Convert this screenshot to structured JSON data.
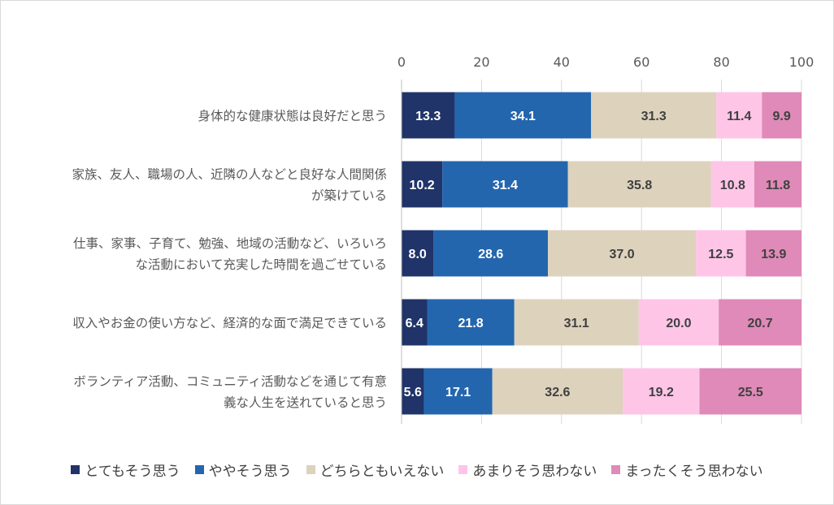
{
  "chart_data": {
    "type": "bar",
    "orientation": "horizontal",
    "stacked": true,
    "xlim": [
      0,
      100
    ],
    "xticks": [
      "0",
      "20",
      "40",
      "60",
      "80",
      "100"
    ],
    "grid": true,
    "legend_position": "bottom",
    "categories": [
      [
        "身体的な健康状態は良好だと思う"
      ],
      [
        "家族、友人、職場の人、近隣の人などと良好な人間関係",
        "が築けている"
      ],
      [
        "仕事、家事、子育て、勉強、地域の活動など、いろいろ",
        "な活動において充実した時間を過ごせている"
      ],
      [
        "収入やお金の使い方など、経済的な面で満足できている"
      ],
      [
        "ボランティア活動、コミュニティ活動などを通じて有意",
        "義な人生を送れていると思う"
      ]
    ],
    "series": [
      {
        "name": "とてもそう思う",
        "color": "#203469",
        "label_color": "#ffffff",
        "values": [
          13.3,
          10.2,
          8.0,
          6.4,
          5.6
        ],
        "labels": [
          "13.3",
          "10.2",
          "8.0",
          "6.4",
          "5.6"
        ]
      },
      {
        "name": "ややそう思う",
        "color": "#2366ae",
        "label_color": "#ffffff",
        "values": [
          34.1,
          31.4,
          28.6,
          21.8,
          17.1
        ],
        "labels": [
          "34.1",
          "31.4",
          "28.6",
          "21.8",
          "17.1"
        ]
      },
      {
        "name": "どちらともいえない",
        "color": "#ddd2bc",
        "label_color": "#404040",
        "values": [
          31.3,
          35.8,
          37.0,
          31.1,
          32.6
        ],
        "labels": [
          "31.3",
          "35.8",
          "37.0",
          "31.1",
          "32.6"
        ]
      },
      {
        "name": "あまりそう思わない",
        "color": "#fec5e7",
        "label_color": "#404040",
        "values": [
          11.4,
          10.8,
          12.5,
          20.0,
          19.2
        ],
        "labels": [
          "11.4",
          "10.8",
          "12.5",
          "20.0",
          "19.2"
        ]
      },
      {
        "name": "まったくそう思わない",
        "color": "#df8ab8",
        "label_color": "#404040",
        "values": [
          9.9,
          11.8,
          13.9,
          20.7,
          25.5
        ],
        "labels": [
          "9.9",
          "11.8",
          "13.9",
          "20.7",
          "25.5"
        ]
      }
    ]
  }
}
